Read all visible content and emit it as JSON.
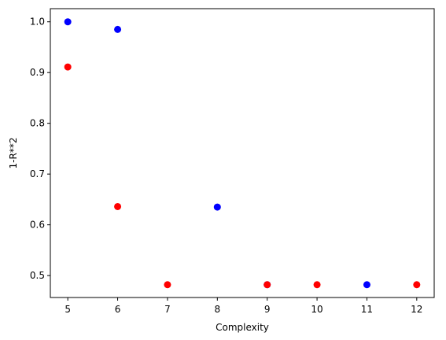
{
  "chart_data": {
    "type": "scatter",
    "xlabel": "Complexity",
    "ylabel": "1-R**2",
    "xlim": [
      4.65,
      12.35
    ],
    "ylim": [
      0.4568,
      1.0259
    ],
    "xticks": [
      5,
      6,
      7,
      8,
      9,
      10,
      11,
      12
    ],
    "yticks": [
      0.5,
      0.6,
      0.7,
      0.8,
      0.9,
      1.0
    ],
    "ytick_labels": [
      "0.5",
      "0.6",
      "0.7",
      "0.8",
      "0.9",
      "1.0"
    ],
    "grid": false,
    "series": [
      {
        "color": "#0000ff",
        "x": [
          5,
          6,
          8,
          9,
          11
        ],
        "y": [
          1.0,
          0.985,
          0.635,
          0.482,
          0.482
        ]
      },
      {
        "color": "#ff0000",
        "x": [
          5,
          6,
          7,
          9,
          10,
          12
        ],
        "y": [
          0.911,
          0.636,
          0.482,
          0.482,
          0.482,
          0.482
        ]
      }
    ]
  }
}
